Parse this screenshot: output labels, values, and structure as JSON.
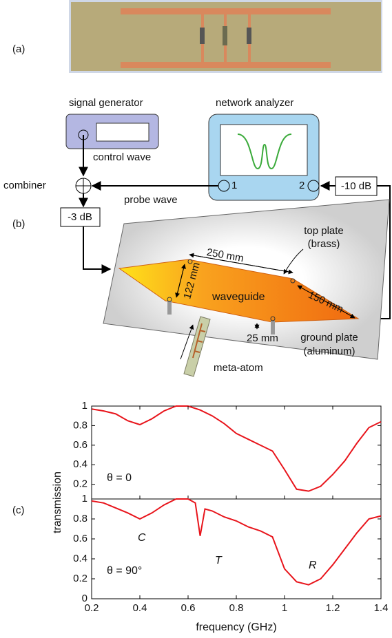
{
  "panel_labels": [
    "(a)",
    "(b)",
    "(c)"
  ],
  "diagram": {
    "signal_generator": "signal generator",
    "network_analyzer": "network analyzer",
    "control_wave": "control wave",
    "combiner": "combiner",
    "probe_wave": "probe wave",
    "port_1": "1",
    "port_2": "2",
    "attenuator_10": "-10 dB",
    "attenuator_3": "-3 dB",
    "top_plate": [
      "top plate",
      "(brass)"
    ],
    "length_250": "250 mm",
    "width_122": "122 mm",
    "length_150": "150 mm",
    "waveguide": "waveguide",
    "height_25": "25 mm",
    "ground_plate": [
      "ground plate",
      "(aluminum)"
    ],
    "meta_atom": "meta-atom"
  },
  "chart_data": [
    {
      "type": "line",
      "annotations": [
        "θ = 0"
      ],
      "x": [
        0.2,
        0.25,
        0.3,
        0.35,
        0.4,
        0.45,
        0.5,
        0.55,
        0.6,
        0.65,
        0.7,
        0.75,
        0.8,
        0.85,
        0.9,
        0.95,
        1.0,
        1.05,
        1.1,
        1.15,
        1.2,
        1.25,
        1.3,
        1.35,
        1.4
      ],
      "series": [
        {
          "color": "#e8141b",
          "values": [
            0.97,
            0.95,
            0.92,
            0.85,
            0.81,
            0.87,
            0.95,
            1.0,
            1.0,
            0.96,
            0.9,
            0.82,
            0.72,
            0.66,
            0.6,
            0.54,
            0.35,
            0.15,
            0.13,
            0.18,
            0.3,
            0.44,
            0.62,
            0.78,
            0.84
          ]
        }
      ],
      "xlim": [
        0.2,
        1.4
      ],
      "ylim": [
        0.05,
        1
      ],
      "yticks": [
        0.2,
        0.4,
        0.6,
        0.8,
        1
      ]
    },
    {
      "type": "line",
      "annotations": [
        "θ = 90°",
        "C",
        "T",
        "R"
      ],
      "xlabel": "frequency (GHz)",
      "ylabel": "transmission",
      "x": [
        0.2,
        0.25,
        0.3,
        0.35,
        0.4,
        0.45,
        0.5,
        0.55,
        0.6,
        0.63,
        0.65,
        0.67,
        0.7,
        0.75,
        0.8,
        0.85,
        0.9,
        0.95,
        1.0,
        1.05,
        1.1,
        1.15,
        1.2,
        1.25,
        1.3,
        1.35,
        1.4
      ],
      "series": [
        {
          "color": "#e8141b",
          "values": [
            0.98,
            0.96,
            0.91,
            0.86,
            0.8,
            0.86,
            0.94,
            1.0,
            1.0,
            0.96,
            0.63,
            0.9,
            0.88,
            0.82,
            0.78,
            0.72,
            0.68,
            0.62,
            0.3,
            0.17,
            0.14,
            0.2,
            0.34,
            0.5,
            0.66,
            0.8,
            0.83
          ]
        }
      ],
      "xlim": [
        0.2,
        1.4
      ],
      "ylim": [
        0,
        1
      ],
      "xticks": [
        0.2,
        0.4,
        0.6,
        0.8,
        1,
        1.2,
        1.4
      ],
      "yticks": [
        0,
        0.2,
        0.4,
        0.6,
        0.8,
        1
      ]
    }
  ]
}
